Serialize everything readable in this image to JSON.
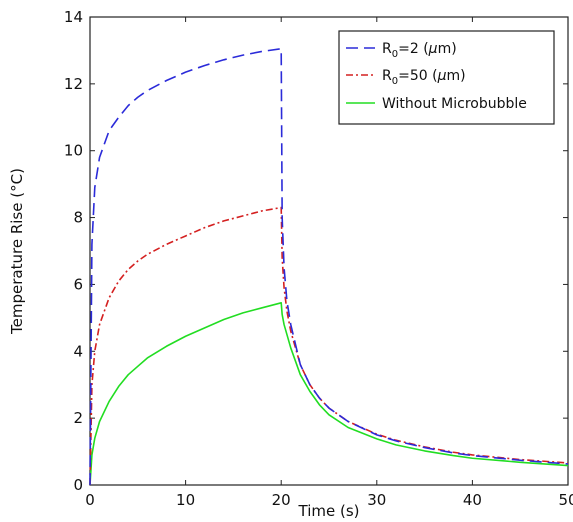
{
  "chart_data": {
    "type": "line",
    "title": "",
    "xlabel": "Time (s)",
    "ylabel": "Temperature Rise (°C)",
    "xlim": [
      0,
      50
    ],
    "ylim": [
      0,
      14
    ],
    "xticks": [
      "0",
      "10",
      "20",
      "30",
      "40",
      "50"
    ],
    "yticks": [
      "0",
      "2",
      "4",
      "6",
      "8",
      "10",
      "12",
      "14"
    ],
    "grid": false,
    "legend_position": "top-right",
    "series": [
      {
        "name": "R0=2 (μm)",
        "legend_label": {
          "main": "R",
          "sub": "0",
          "rest": "=2 (",
          "mu": "μ",
          "unit": "m)"
        },
        "color": "#2b2bd9",
        "dash": "12,6",
        "x": [
          0,
          0.2,
          0.5,
          1,
          2,
          3,
          4,
          5,
          6,
          8,
          10,
          12,
          14,
          16,
          18,
          20,
          20.1,
          20.3,
          20.6,
          21,
          22,
          23,
          24,
          25,
          27,
          30,
          32,
          35,
          38,
          40,
          45,
          50
        ],
        "y": [
          0,
          7.2,
          8.9,
          9.8,
          10.6,
          11.0,
          11.35,
          11.6,
          11.8,
          12.1,
          12.35,
          12.55,
          12.72,
          12.86,
          12.97,
          13.05,
          8.0,
          6.5,
          5.5,
          4.8,
          3.6,
          3.0,
          2.6,
          2.3,
          1.9,
          1.5,
          1.32,
          1.12,
          0.96,
          0.88,
          0.74,
          0.63
        ]
      },
      {
        "name": "R0=50 (μm)",
        "legend_label": {
          "main": "R",
          "sub": "0",
          "rest": "=50 (",
          "mu": "μ",
          "unit": "m)"
        },
        "color": "#d42020",
        "dash": "7,3,2,3",
        "x": [
          0,
          0.2,
          0.5,
          1,
          2,
          3,
          4,
          5,
          6,
          8,
          10,
          12,
          14,
          16,
          18,
          20,
          20.1,
          20.3,
          20.6,
          21,
          22,
          23,
          24,
          25,
          27,
          30,
          32,
          35,
          38,
          40,
          45,
          50
        ],
        "y": [
          0,
          3.0,
          4.0,
          4.8,
          5.6,
          6.1,
          6.45,
          6.7,
          6.9,
          7.2,
          7.45,
          7.7,
          7.9,
          8.05,
          8.2,
          8.3,
          6.8,
          5.9,
          5.2,
          4.6,
          3.6,
          3.0,
          2.6,
          2.3,
          1.9,
          1.52,
          1.34,
          1.14,
          0.98,
          0.9,
          0.76,
          0.66
        ]
      },
      {
        "name": "Without Microbubble",
        "legend_label": {
          "main": "Without Microbubble",
          "sub": "",
          "rest": "",
          "mu": "",
          "unit": ""
        },
        "color": "#22dd22",
        "dash": "",
        "x": [
          0,
          0.2,
          0.5,
          1,
          2,
          3,
          4,
          5,
          6,
          8,
          10,
          12,
          14,
          16,
          18,
          20,
          20.1,
          20.3,
          20.6,
          21,
          22,
          23,
          24,
          25,
          27,
          30,
          32,
          35,
          38,
          40,
          45,
          50
        ],
        "y": [
          0,
          0.9,
          1.4,
          1.9,
          2.5,
          2.95,
          3.3,
          3.55,
          3.8,
          4.15,
          4.45,
          4.7,
          4.95,
          5.15,
          5.3,
          5.45,
          5.1,
          4.8,
          4.5,
          4.1,
          3.3,
          2.8,
          2.4,
          2.1,
          1.72,
          1.38,
          1.2,
          1.02,
          0.88,
          0.8,
          0.68,
          0.58
        ]
      }
    ]
  }
}
